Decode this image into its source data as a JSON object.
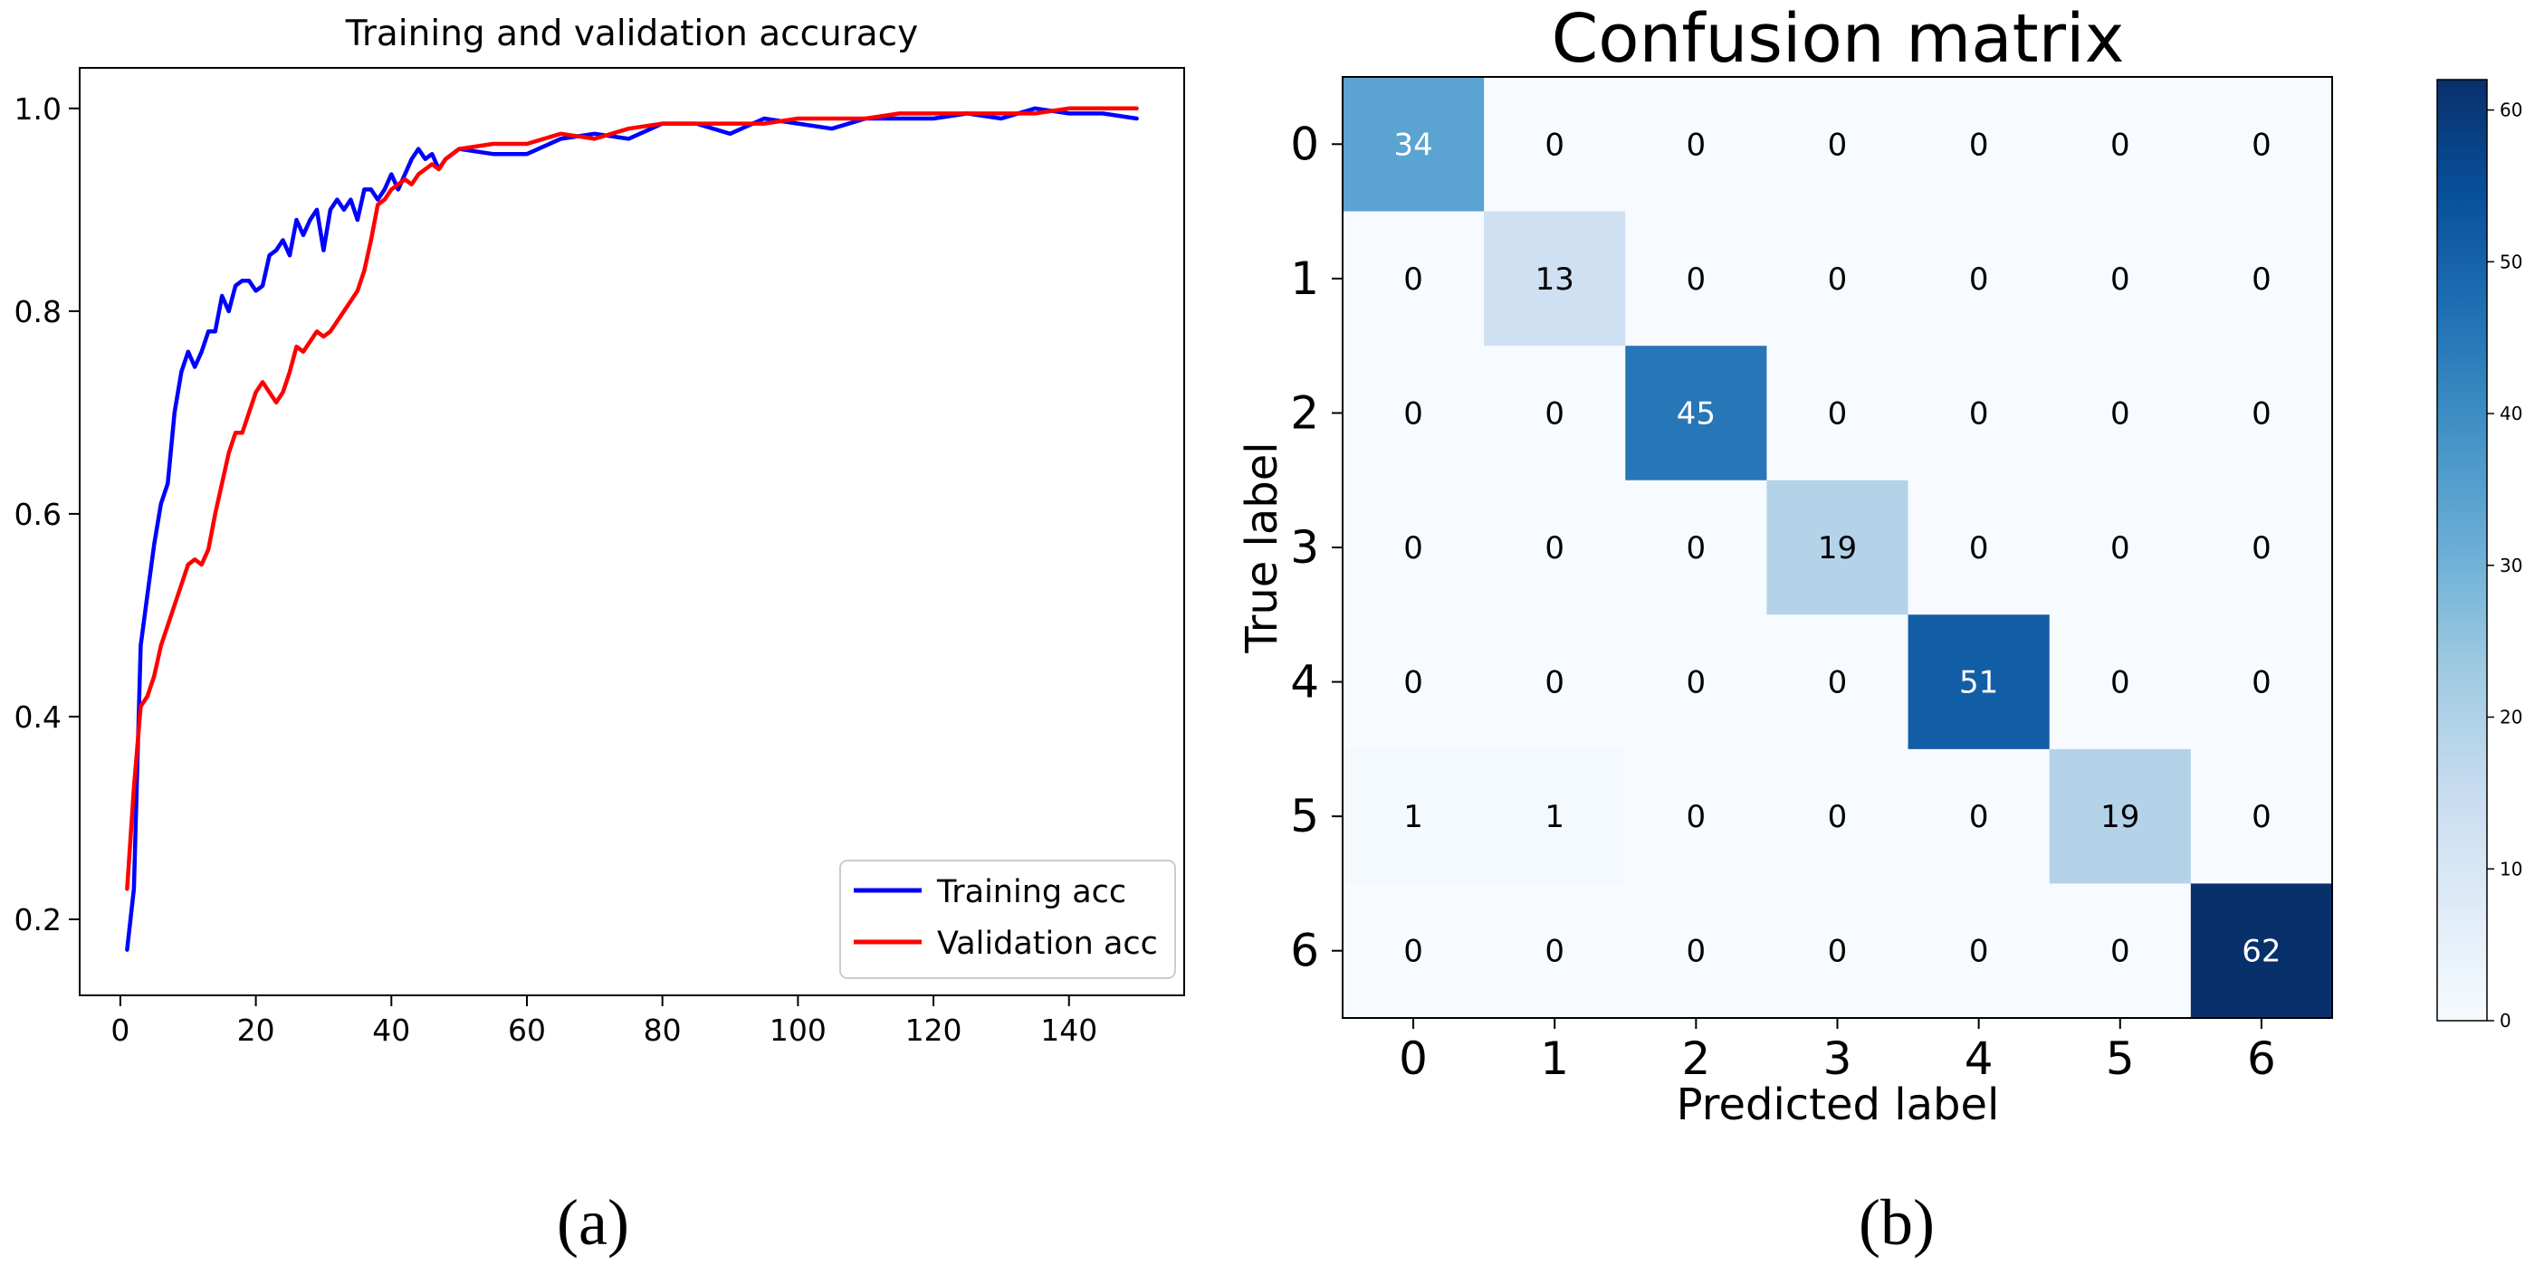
{
  "panels": {
    "a": {
      "caption": "(a)"
    },
    "b": {
      "caption": "(b)"
    }
  },
  "chart_data": [
    {
      "type": "line",
      "title": "Training and validation accuracy",
      "xlabel": "",
      "ylabel": "",
      "xlim": [
        -6,
        157
      ],
      "ylim": [
        0.125,
        1.04
      ],
      "xticks": [
        0,
        20,
        40,
        60,
        80,
        100,
        120,
        140
      ],
      "yticks": [
        0.2,
        0.4,
        0.6,
        0.8,
        1.0
      ],
      "ytick_labels": [
        "0.2",
        "0.4",
        "0.6",
        "0.8",
        "1.0"
      ],
      "grid": false,
      "legend_position": "lower-right",
      "series": [
        {
          "name": "Training acc",
          "color": "#0000ff",
          "x": [
            1,
            2,
            3,
            4,
            5,
            6,
            7,
            8,
            9,
            10,
            11,
            12,
            13,
            14,
            15,
            16,
            17,
            18,
            19,
            20,
            21,
            22,
            23,
            24,
            25,
            26,
            27,
            28,
            29,
            30,
            31,
            32,
            33,
            34,
            35,
            36,
            37,
            38,
            39,
            40,
            41,
            42,
            43,
            44,
            45,
            46,
            47,
            48,
            49,
            50,
            55,
            60,
            65,
            70,
            75,
            80,
            85,
            90,
            95,
            100,
            105,
            110,
            115,
            120,
            125,
            130,
            135,
            140,
            145,
            150
          ],
          "y": [
            0.17,
            0.23,
            0.47,
            0.52,
            0.57,
            0.61,
            0.63,
            0.7,
            0.74,
            0.76,
            0.745,
            0.76,
            0.78,
            0.78,
            0.815,
            0.8,
            0.825,
            0.83,
            0.83,
            0.82,
            0.825,
            0.855,
            0.86,
            0.87,
            0.855,
            0.89,
            0.875,
            0.89,
            0.9,
            0.86,
            0.9,
            0.91,
            0.9,
            0.91,
            0.89,
            0.92,
            0.92,
            0.91,
            0.92,
            0.935,
            0.92,
            0.935,
            0.95,
            0.96,
            0.95,
            0.955,
            0.94,
            0.95,
            0.955,
            0.96,
            0.955,
            0.955,
            0.97,
            0.975,
            0.97,
            0.985,
            0.985,
            0.975,
            0.99,
            0.985,
            0.98,
            0.99,
            0.99,
            0.99,
            0.995,
            0.99,
            1.0,
            0.995,
            0.995,
            0.99
          ]
        },
        {
          "name": "Validation acc",
          "color": "#ff0000",
          "x": [
            1,
            2,
            3,
            4,
            5,
            6,
            7,
            8,
            9,
            10,
            11,
            12,
            13,
            14,
            15,
            16,
            17,
            18,
            19,
            20,
            21,
            22,
            23,
            24,
            25,
            26,
            27,
            28,
            29,
            30,
            31,
            32,
            33,
            34,
            35,
            36,
            37,
            38,
            39,
            40,
            41,
            42,
            43,
            44,
            45,
            46,
            47,
            48,
            49,
            50,
            55,
            60,
            65,
            70,
            75,
            80,
            85,
            90,
            95,
            100,
            105,
            110,
            115,
            120,
            125,
            130,
            135,
            140,
            145,
            150
          ],
          "y": [
            0.23,
            0.33,
            0.41,
            0.42,
            0.44,
            0.47,
            0.49,
            0.51,
            0.53,
            0.55,
            0.555,
            0.55,
            0.565,
            0.6,
            0.63,
            0.66,
            0.68,
            0.68,
            0.7,
            0.72,
            0.73,
            0.72,
            0.71,
            0.72,
            0.74,
            0.765,
            0.76,
            0.77,
            0.78,
            0.775,
            0.78,
            0.79,
            0.8,
            0.81,
            0.82,
            0.84,
            0.87,
            0.905,
            0.91,
            0.92,
            0.925,
            0.93,
            0.925,
            0.935,
            0.94,
            0.945,
            0.94,
            0.95,
            0.955,
            0.96,
            0.965,
            0.965,
            0.975,
            0.97,
            0.98,
            0.985,
            0.985,
            0.985,
            0.985,
            0.99,
            0.99,
            0.99,
            0.995,
            0.995,
            0.995,
            0.995,
            0.995,
            1.0,
            1.0,
            1.0
          ]
        }
      ]
    },
    {
      "type": "heatmap",
      "title": "Confusion matrix",
      "xlabel": "Predicted label",
      "ylabel": "True label",
      "row_labels": [
        "0",
        "1",
        "2",
        "3",
        "4",
        "5",
        "6"
      ],
      "col_labels": [
        "0",
        "1",
        "2",
        "3",
        "4",
        "5",
        "6"
      ],
      "values": [
        [
          34,
          0,
          0,
          0,
          0,
          0,
          0
        ],
        [
          0,
          13,
          0,
          0,
          0,
          0,
          0
        ],
        [
          0,
          0,
          45,
          0,
          0,
          0,
          0
        ],
        [
          0,
          0,
          0,
          19,
          0,
          0,
          0
        ],
        [
          0,
          0,
          0,
          0,
          51,
          0,
          0
        ],
        [
          1,
          1,
          0,
          0,
          0,
          19,
          0
        ],
        [
          0,
          0,
          0,
          0,
          0,
          0,
          62
        ]
      ],
      "colormap": "Blues",
      "colorbar": {
        "min": 0,
        "max": 62,
        "ticks": [
          0,
          10,
          20,
          30,
          40,
          50,
          60
        ],
        "tick_labels": [
          "0",
          "10",
          "20",
          "30",
          "40",
          "50",
          "60"
        ]
      }
    }
  ]
}
